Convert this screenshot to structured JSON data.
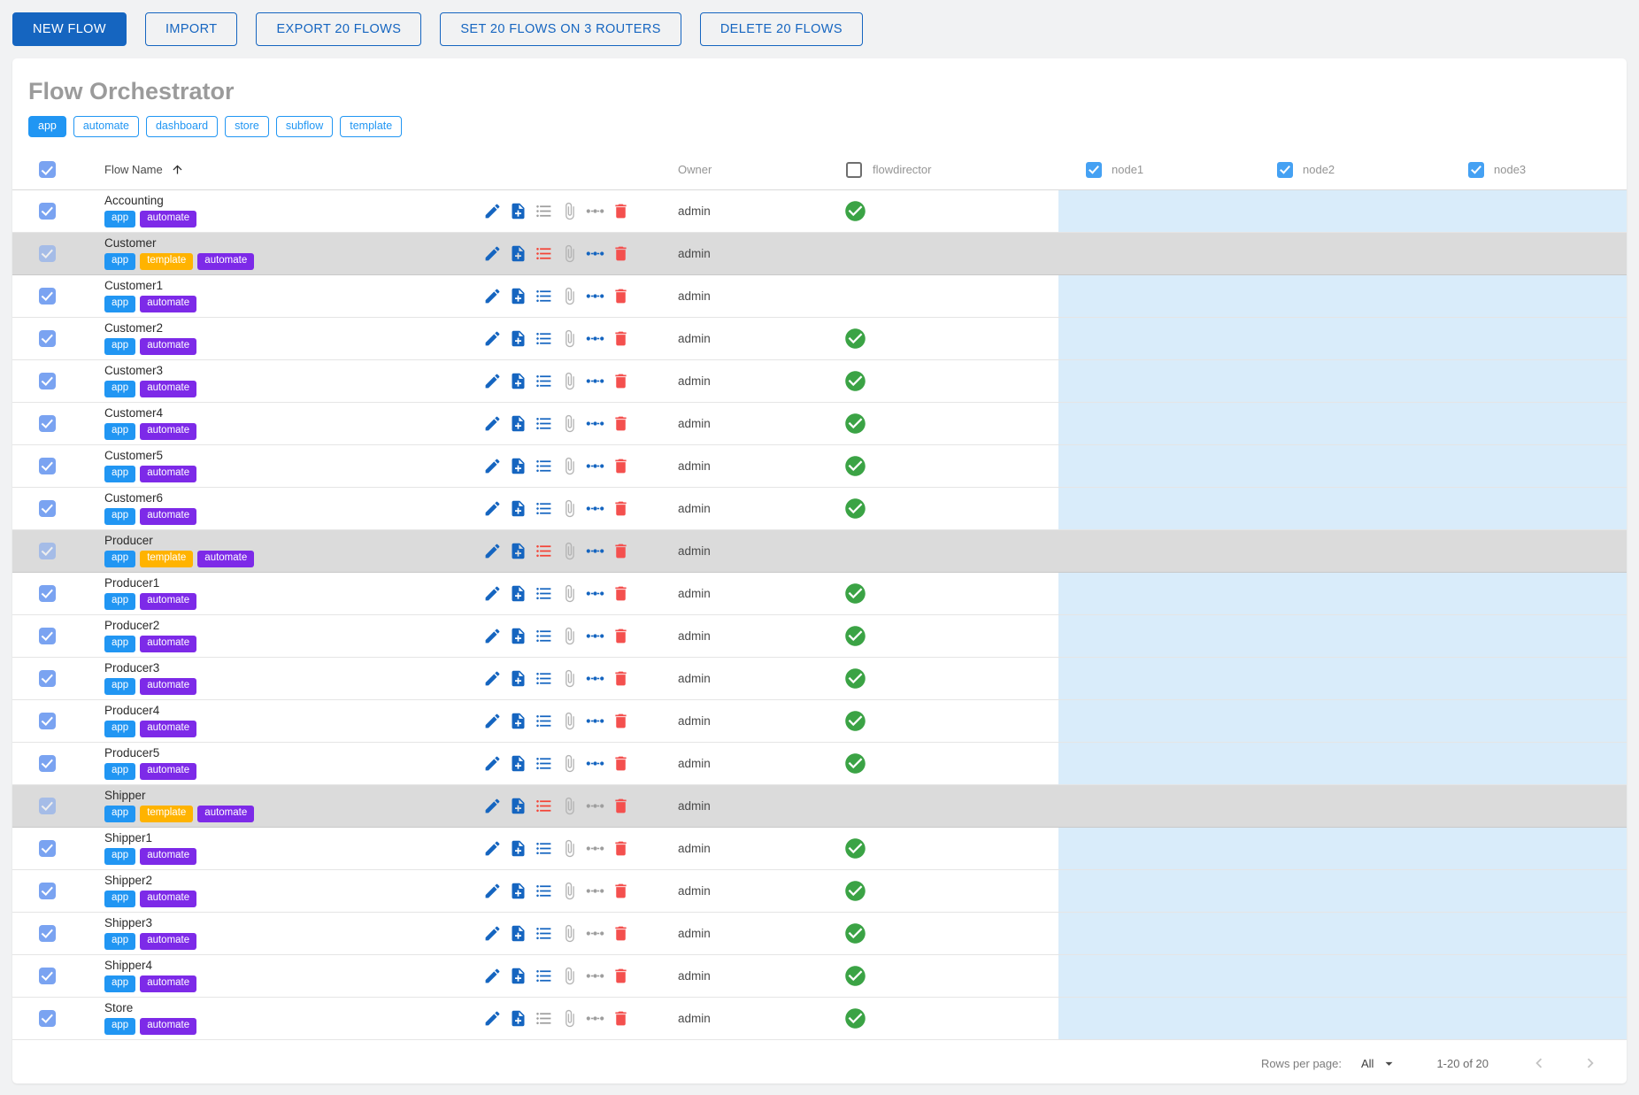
{
  "toolbar": {
    "buttons": [
      {
        "label": "NEW FLOW",
        "variant": "primary"
      },
      {
        "label": "IMPORT",
        "variant": "outlined"
      },
      {
        "label": "EXPORT 20 FLOWS",
        "variant": "outlined"
      },
      {
        "label": "SET 20 FLOWS ON 3 ROUTERS",
        "variant": "outlined"
      },
      {
        "label": "DELETE 20 FLOWS",
        "variant": "outlined"
      }
    ]
  },
  "page": {
    "title": "Flow Orchestrator"
  },
  "filters": [
    {
      "label": "app",
      "active": true
    },
    {
      "label": "automate",
      "active": false
    },
    {
      "label": "dashboard",
      "active": false
    },
    {
      "label": "store",
      "active": false
    },
    {
      "label": "subflow",
      "active": false
    },
    {
      "label": "template",
      "active": false
    }
  ],
  "table": {
    "columns": {
      "flow_name": "Flow Name",
      "owner": "Owner",
      "flowdirector": "flowdirector",
      "node1": "node1",
      "node2": "node2",
      "node3": "node3"
    },
    "header_checkboxes": {
      "select_all": true,
      "flowdirector": false,
      "node1": true,
      "node2": true,
      "node3": true
    },
    "actions": [
      "edit",
      "duplicate",
      "list",
      "attach",
      "route",
      "delete"
    ],
    "rows": [
      {
        "name": "Accounting",
        "tags": [
          "app",
          "automate"
        ],
        "owner": "admin",
        "flowdirector": true,
        "template_row": false,
        "list_icon": "gray",
        "route_icon": "gray"
      },
      {
        "name": "Customer",
        "tags": [
          "app",
          "template",
          "automate"
        ],
        "owner": "admin",
        "flowdirector": false,
        "template_row": true,
        "list_icon": "red",
        "route_icon": "blue"
      },
      {
        "name": "Customer1",
        "tags": [
          "app",
          "automate"
        ],
        "owner": "admin",
        "flowdirector": false,
        "template_row": false,
        "list_icon": "blue",
        "route_icon": "blue"
      },
      {
        "name": "Customer2",
        "tags": [
          "app",
          "automate"
        ],
        "owner": "admin",
        "flowdirector": true,
        "template_row": false,
        "list_icon": "blue",
        "route_icon": "blue"
      },
      {
        "name": "Customer3",
        "tags": [
          "app",
          "automate"
        ],
        "owner": "admin",
        "flowdirector": true,
        "template_row": false,
        "list_icon": "blue",
        "route_icon": "blue"
      },
      {
        "name": "Customer4",
        "tags": [
          "app",
          "automate"
        ],
        "owner": "admin",
        "flowdirector": true,
        "template_row": false,
        "list_icon": "blue",
        "route_icon": "blue"
      },
      {
        "name": "Customer5",
        "tags": [
          "app",
          "automate"
        ],
        "owner": "admin",
        "flowdirector": true,
        "template_row": false,
        "list_icon": "blue",
        "route_icon": "blue"
      },
      {
        "name": "Customer6",
        "tags": [
          "app",
          "automate"
        ],
        "owner": "admin",
        "flowdirector": true,
        "template_row": false,
        "list_icon": "blue",
        "route_icon": "blue"
      },
      {
        "name": "Producer",
        "tags": [
          "app",
          "template",
          "automate"
        ],
        "owner": "admin",
        "flowdirector": false,
        "template_row": true,
        "list_icon": "red",
        "route_icon": "blue"
      },
      {
        "name": "Producer1",
        "tags": [
          "app",
          "automate"
        ],
        "owner": "admin",
        "flowdirector": true,
        "template_row": false,
        "list_icon": "blue",
        "route_icon": "blue"
      },
      {
        "name": "Producer2",
        "tags": [
          "app",
          "automate"
        ],
        "owner": "admin",
        "flowdirector": true,
        "template_row": false,
        "list_icon": "blue",
        "route_icon": "blue"
      },
      {
        "name": "Producer3",
        "tags": [
          "app",
          "automate"
        ],
        "owner": "admin",
        "flowdirector": true,
        "template_row": false,
        "list_icon": "blue",
        "route_icon": "blue"
      },
      {
        "name": "Producer4",
        "tags": [
          "app",
          "automate"
        ],
        "owner": "admin",
        "flowdirector": true,
        "template_row": false,
        "list_icon": "blue",
        "route_icon": "blue"
      },
      {
        "name": "Producer5",
        "tags": [
          "app",
          "automate"
        ],
        "owner": "admin",
        "flowdirector": true,
        "template_row": false,
        "list_icon": "blue",
        "route_icon": "blue"
      },
      {
        "name": "Shipper",
        "tags": [
          "app",
          "template",
          "automate"
        ],
        "owner": "admin",
        "flowdirector": false,
        "template_row": true,
        "list_icon": "red",
        "route_icon": "gray"
      },
      {
        "name": "Shipper1",
        "tags": [
          "app",
          "automate"
        ],
        "owner": "admin",
        "flowdirector": true,
        "template_row": false,
        "list_icon": "blue",
        "route_icon": "gray"
      },
      {
        "name": "Shipper2",
        "tags": [
          "app",
          "automate"
        ],
        "owner": "admin",
        "flowdirector": true,
        "template_row": false,
        "list_icon": "blue",
        "route_icon": "gray"
      },
      {
        "name": "Shipper3",
        "tags": [
          "app",
          "automate"
        ],
        "owner": "admin",
        "flowdirector": true,
        "template_row": false,
        "list_icon": "blue",
        "route_icon": "gray"
      },
      {
        "name": "Shipper4",
        "tags": [
          "app",
          "automate"
        ],
        "owner": "admin",
        "flowdirector": true,
        "template_row": false,
        "list_icon": "blue",
        "route_icon": "gray"
      },
      {
        "name": "Store",
        "tags": [
          "app",
          "automate"
        ],
        "owner": "admin",
        "flowdirector": true,
        "template_row": false,
        "list_icon": "gray",
        "route_icon": "gray"
      }
    ]
  },
  "footer": {
    "rows_per_page_label": "Rows per page:",
    "rows_per_page_value": "All",
    "range": "1-20 of 20"
  },
  "colors": {
    "primary": "#1565c0",
    "chip_blue": "#2196f3",
    "tag_colors": {
      "app": "#2196f3",
      "automate": "#7d2ae8",
      "template": "#ffb300"
    },
    "status_green": "#3ba345",
    "node_column_bg": "#d9ecfa",
    "template_row_bg": "#dbdbdb",
    "icon_blue": "#1565c0",
    "icon_gray": "#9e9e9e",
    "icon_red": "#f44336",
    "trash_red": "#f4504e"
  }
}
